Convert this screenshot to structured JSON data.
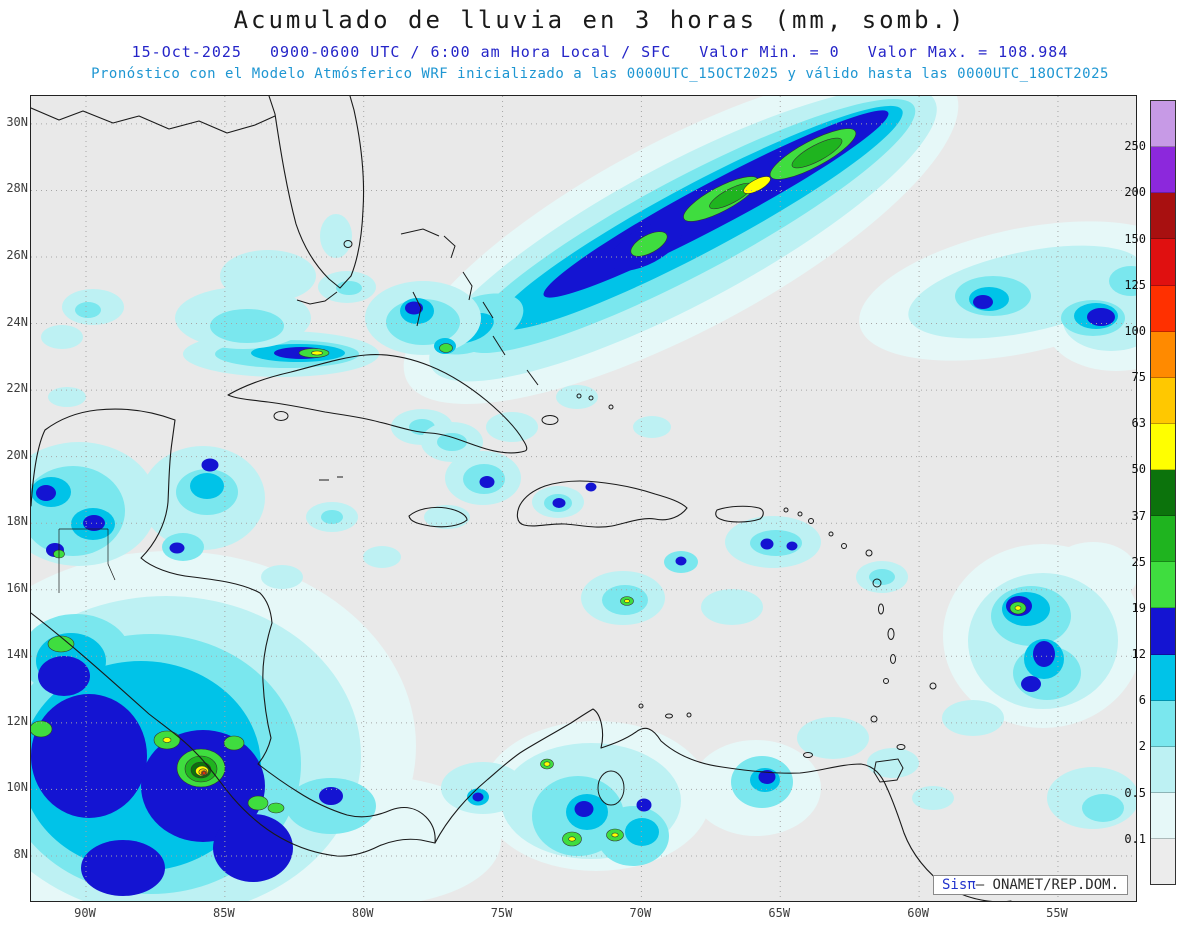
{
  "header": {
    "title": "Acumulado de lluvia en 3 horas (mm, somb.)",
    "line1": {
      "date": "15-Oct-2025",
      "time": "0900-0600 UTC / 6:00 am Hora Local / SFC",
      "min": "Valor Min. = 0",
      "max": "Valor Max. = 108.984"
    },
    "line2": "Pronóstico con el Modelo Atmósferico WRF inicializado a las 0000UTC_15OCT2025 y válido hasta las  0000UTC_18OCT2025"
  },
  "axes": {
    "lat_labels": [
      "30N",
      "28N",
      "26N",
      "24N",
      "22N",
      "20N",
      "18N",
      "16N",
      "14N",
      "12N",
      "10N",
      "8N"
    ],
    "lon_labels": [
      "90W",
      "85W",
      "80W",
      "75W",
      "70W",
      "65W",
      "60W",
      "55W"
    ]
  },
  "colorbar": {
    "labels": [
      "250",
      "200",
      "150",
      "125",
      "100",
      "75",
      "63",
      "50",
      "37",
      "25",
      "19",
      "12",
      "6",
      "2",
      "0.5",
      "0.1"
    ],
    "colors": [
      "#c79ae6",
      "#8c28dc",
      "#a81010",
      "#e01010",
      "#ff3000",
      "#ff8a00",
      "#ffc800",
      "#ffff00",
      "#0c730c",
      "#1fb41f",
      "#3fdd3f",
      "#1414d2",
      "#00c3e8",
      "#7ae7ee",
      "#bdf1f3",
      "#e6f8f8",
      "#ececec"
    ]
  },
  "credit": {
    "app": "Sisπ",
    "org": "— ONAMET/REP.DOM."
  }
}
